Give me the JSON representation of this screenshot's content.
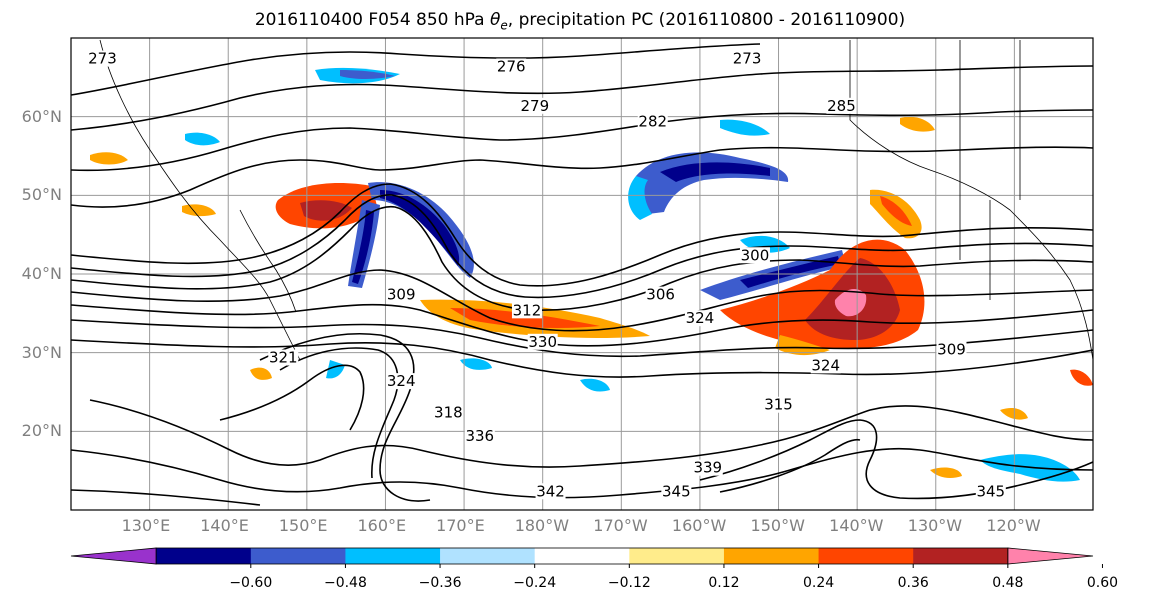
{
  "title": {
    "prefix": "2016110400 F054 850 hPa ",
    "symbol": "θ",
    "subscript": "e",
    "suffix": ", precipitation PC (2016110800 - 2016110900)"
  },
  "map": {
    "extent": {
      "lon_min": 120,
      "lon_max": 250,
      "lat_min": 10,
      "lat_max": 70
    },
    "lat_ticks": [
      {
        "value": 20,
        "label": "20°N"
      },
      {
        "value": 30,
        "label": "30°N"
      },
      {
        "value": 40,
        "label": "40°N"
      },
      {
        "value": 50,
        "label": "50°N"
      },
      {
        "value": 60,
        "label": "60°N"
      }
    ],
    "lon_ticks": [
      {
        "value": 130,
        "label": "130°E"
      },
      {
        "value": 140,
        "label": "140°E"
      },
      {
        "value": 150,
        "label": "150°E"
      },
      {
        "value": 160,
        "label": "160°E"
      },
      {
        "value": 170,
        "label": "170°E"
      },
      {
        "value": 180,
        "label": "180°W"
      },
      {
        "value": 190,
        "label": "170°W"
      },
      {
        "value": 200,
        "label": "160°W"
      },
      {
        "value": 210,
        "label": "150°W"
      },
      {
        "value": 220,
        "label": "140°W"
      },
      {
        "value": 230,
        "label": "130°W"
      },
      {
        "value": 240,
        "label": "120°W"
      }
    ],
    "contour_labels": [
      {
        "text": "273",
        "lon": 124,
        "lat": 67
      },
      {
        "text": "276",
        "lon": 176,
        "lat": 66
      },
      {
        "text": "279",
        "lon": 179,
        "lat": 61
      },
      {
        "text": "282",
        "lon": 194,
        "lat": 59
      },
      {
        "text": "273",
        "lon": 206,
        "lat": 67
      },
      {
        "text": "285",
        "lon": 218,
        "lat": 61
      },
      {
        "text": "300",
        "lon": 207,
        "lat": 42
      },
      {
        "text": "306",
        "lon": 195,
        "lat": 37
      },
      {
        "text": "309",
        "lon": 162,
        "lat": 37
      },
      {
        "text": "312",
        "lon": 178,
        "lat": 35
      },
      {
        "text": "324",
        "lon": 200,
        "lat": 34
      },
      {
        "text": "330",
        "lon": 180,
        "lat": 31
      },
      {
        "text": "321",
        "lon": 147,
        "lat": 29
      },
      {
        "text": "324",
        "lon": 162,
        "lat": 26
      },
      {
        "text": "318",
        "lon": 168,
        "lat": 22
      },
      {
        "text": "336",
        "lon": 172,
        "lat": 19
      },
      {
        "text": "342",
        "lon": 181,
        "lat": 12
      },
      {
        "text": "345",
        "lon": 197,
        "lat": 12
      },
      {
        "text": "339",
        "lon": 201,
        "lat": 15
      },
      {
        "text": "315",
        "lon": 210,
        "lat": 23
      },
      {
        "text": "324",
        "lon": 216,
        "lat": 28
      },
      {
        "text": "309",
        "lon": 232,
        "lat": 30
      },
      {
        "text": "345",
        "lon": 237,
        "lat": 12
      }
    ]
  },
  "colorbar": {
    "extend": "both",
    "colors": [
      "#9932cc",
      "#00008b",
      "#3d5ccd",
      "#00bfff",
      "#b0e2ff",
      "#ffffff",
      "#ffec8b",
      "#ffa500",
      "#ff4500",
      "#b22222",
      "#ff82ab"
    ],
    "boundaries": [
      -0.72,
      -0.6,
      -0.48,
      -0.36,
      -0.24,
      -0.12,
      0.12,
      0.24,
      0.36,
      0.48,
      0.6,
      0.72
    ],
    "tick_labels": [
      "−0.60",
      "−0.48",
      "−0.36",
      "−0.24",
      "−0.12",
      "0.12",
      "0.24",
      "0.36",
      "0.48",
      "0.60"
    ]
  }
}
